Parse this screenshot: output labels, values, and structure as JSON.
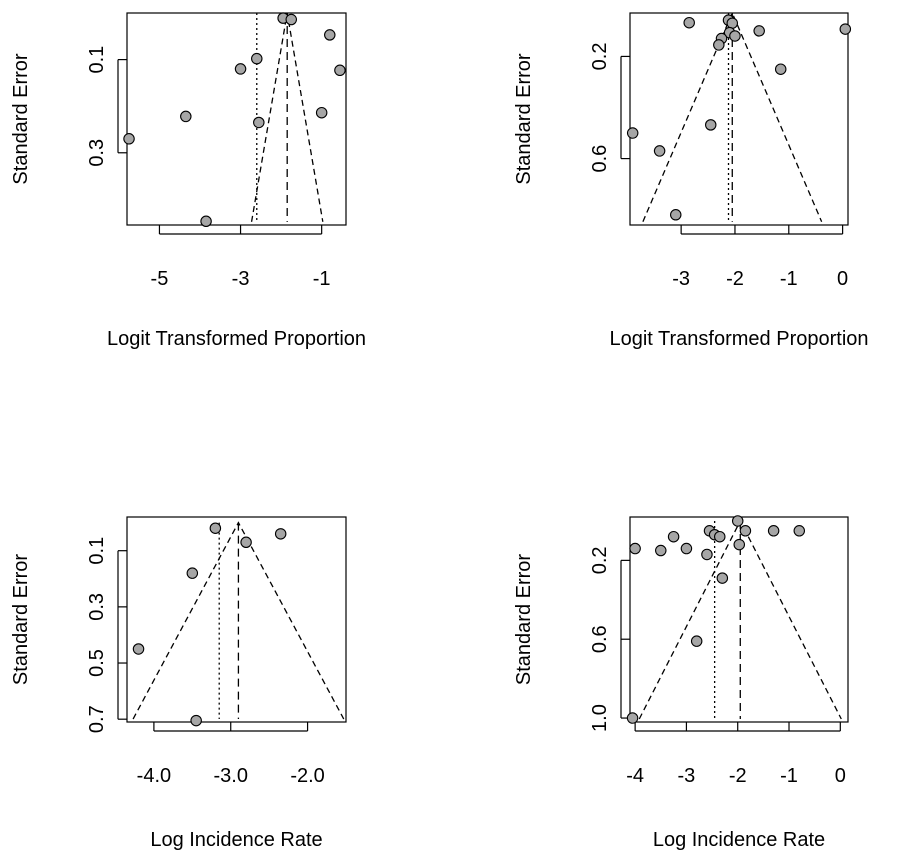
{
  "chart_data": [
    {
      "type": "scatter",
      "xlabel": "Logit Transformed Proportion",
      "ylabel": "Standard Error",
      "xlim": [
        -5.8,
        -0.4
      ],
      "ylim": [
        0.455,
        0.0
      ],
      "y_reversed": true,
      "xticks": [
        -5,
        -3,
        -1
      ],
      "xtick_labels": [
        "-5",
        "-3",
        "-1"
      ],
      "yticks": [
        0.1,
        0.3
      ],
      "ytick_labels": [
        "0.1",
        "0.3"
      ],
      "pooled_estimate": -1.85,
      "alt_estimate": -2.6,
      "points": [
        {
          "x": -1.95,
          "y": 0.011
        },
        {
          "x": -1.75,
          "y": 0.014
        },
        {
          "x": -0.8,
          "y": 0.047
        },
        {
          "x": -2.6,
          "y": 0.098
        },
        {
          "x": -3.0,
          "y": 0.12
        },
        {
          "x": -0.55,
          "y": 0.123
        },
        {
          "x": -4.35,
          "y": 0.222
        },
        {
          "x": -1.0,
          "y": 0.214
        },
        {
          "x": -2.55,
          "y": 0.235
        },
        {
          "x": -5.75,
          "y": 0.27
        },
        {
          "x": -3.85,
          "y": 0.447
        }
      ]
    },
    {
      "type": "scatter",
      "xlabel": "Logit Transformed Proportion",
      "ylabel": "Standard Error",
      "xlim": [
        -3.95,
        0.1
      ],
      "ylim": [
        0.86,
        0.03
      ],
      "y_reversed": true,
      "xticks": [
        -3,
        -2,
        -1,
        0
      ],
      "xtick_labels": [
        "-3",
        "-2",
        "-1",
        "0"
      ],
      "yticks": [
        0.2,
        0.6
      ],
      "ytick_labels": [
        "0.2",
        "0.6"
      ],
      "pooled_estimate": -2.05,
      "alt_estimate": -2.12,
      "points": [
        {
          "x": -2.85,
          "y": 0.068
        },
        {
          "x": -2.12,
          "y": 0.058
        },
        {
          "x": -2.05,
          "y": 0.07
        },
        {
          "x": -1.55,
          "y": 0.1
        },
        {
          "x": 0.05,
          "y": 0.093
        },
        {
          "x": -2.1,
          "y": 0.107
        },
        {
          "x": -2.25,
          "y": 0.13
        },
        {
          "x": -2.0,
          "y": 0.12
        },
        {
          "x": -2.3,
          "y": 0.155
        },
        {
          "x": -1.15,
          "y": 0.25
        },
        {
          "x": -2.45,
          "y": 0.468
        },
        {
          "x": -3.9,
          "y": 0.5
        },
        {
          "x": -3.4,
          "y": 0.57
        },
        {
          "x": -3.1,
          "y": 0.82
        }
      ]
    },
    {
      "type": "scatter",
      "xlabel": "Log Incidence Rate",
      "ylabel": "Standard Error",
      "xlim": [
        -4.35,
        -1.5
      ],
      "ylim": [
        0.71,
        -0.02
      ],
      "y_reversed": true,
      "xticks": [
        -4.0,
        -3.0,
        -2.0
      ],
      "xtick_labels": [
        "-4.0",
        "-3.0",
        "-2.0"
      ],
      "yticks": [
        0.1,
        0.3,
        0.5,
        0.7
      ],
      "ytick_labels": [
        "0.1",
        "0.3",
        "0.5",
        "0.7"
      ],
      "pooled_estimate": -2.9,
      "alt_estimate": -3.15,
      "points": [
        {
          "x": -3.2,
          "y": 0.02
        },
        {
          "x": -2.8,
          "y": 0.07
        },
        {
          "x": -2.35,
          "y": 0.04
        },
        {
          "x": -3.5,
          "y": 0.18
        },
        {
          "x": -4.2,
          "y": 0.45
        },
        {
          "x": -3.45,
          "y": 0.705
        }
      ]
    },
    {
      "type": "scatter",
      "xlabel": "Log Incidence Rate",
      "ylabel": "Standard Error",
      "xlim": [
        -4.1,
        0.15
      ],
      "ylim": [
        1.02,
        -0.02
      ],
      "y_reversed": true,
      "xticks": [
        -4,
        -3,
        -2,
        -1,
        0
      ],
      "xtick_labels": [
        "-4",
        "-3",
        "-2",
        "-1",
        "0"
      ],
      "yticks": [
        0.2,
        0.6,
        1.0
      ],
      "ytick_labels": [
        "0.2",
        "0.6",
        "1.0"
      ],
      "pooled_estimate": -1.95,
      "alt_estimate": -2.45,
      "points": [
        {
          "x": -2.0,
          "y": 0.0
        },
        {
          "x": -1.85,
          "y": 0.05
        },
        {
          "x": -1.3,
          "y": 0.05
        },
        {
          "x": -0.8,
          "y": 0.05
        },
        {
          "x": -2.55,
          "y": 0.05
        },
        {
          "x": -2.45,
          "y": 0.07
        },
        {
          "x": -2.35,
          "y": 0.08
        },
        {
          "x": -3.25,
          "y": 0.08
        },
        {
          "x": -1.97,
          "y": 0.12
        },
        {
          "x": -4.0,
          "y": 0.14
        },
        {
          "x": -3.5,
          "y": 0.15
        },
        {
          "x": -3.0,
          "y": 0.14
        },
        {
          "x": -2.6,
          "y": 0.17
        },
        {
          "x": -2.3,
          "y": 0.29
        },
        {
          "x": -2.8,
          "y": 0.61
        },
        {
          "x": -4.05,
          "y": 1.0
        }
      ]
    }
  ]
}
